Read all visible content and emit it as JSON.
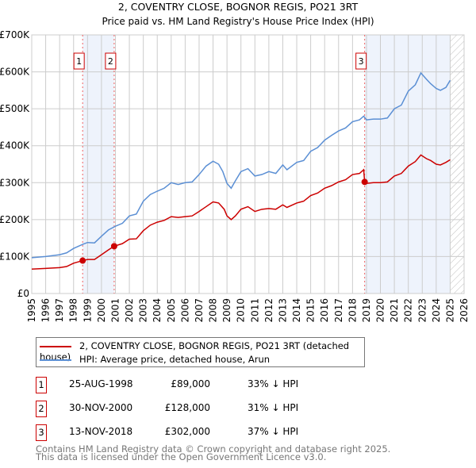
{
  "chart_data": {
    "type": "line",
    "title": "2, COVENTRY CLOSE, BOGNOR REGIS, PO21 3RT",
    "subtitle": "Price paid vs. HM Land Registry's House Price Index (HPI)",
    "xlim": [
      1995,
      2026
    ],
    "ylim": [
      0,
      700000
    ],
    "y_ticks": [
      {
        "v": 0,
        "label": "£0"
      },
      {
        "v": 100000,
        "label": "£100K"
      },
      {
        "v": 200000,
        "label": "£200K"
      },
      {
        "v": 300000,
        "label": "£300K"
      },
      {
        "v": 400000,
        "label": "£400K"
      },
      {
        "v": 500000,
        "label": "£500K"
      },
      {
        "v": 600000,
        "label": "£600K"
      },
      {
        "v": 700000,
        "label": "£700K"
      }
    ],
    "x_ticks": [
      "1995",
      "1996",
      "1997",
      "1998",
      "1999",
      "2000",
      "2001",
      "2002",
      "2003",
      "2004",
      "2005",
      "2006",
      "2007",
      "2008",
      "2009",
      "2010",
      "2011",
      "2012",
      "2013",
      "2014",
      "2015",
      "2016",
      "2017",
      "2018",
      "2019",
      "2020",
      "2021",
      "2022",
      "2023",
      "2024",
      "2025",
      "2026"
    ],
    "series": [
      {
        "name": "2, COVENTRY CLOSE, BOGNOR REGIS, PO21 3RT (detached house)",
        "color": "#cc0000",
        "x": [
          1995,
          1996,
          1997,
          1997.5,
          1998,
          1998.65,
          1999,
          1999.5,
          2000,
          2000.5,
          2000.9,
          2001.5,
          2002,
          2002.5,
          2003,
          2003.5,
          2004,
          2004.5,
          2005,
          2005.5,
          2006,
          2006.5,
          2007,
          2007.5,
          2008,
          2008.4,
          2008.8,
          2009,
          2009.3,
          2009.6,
          2010,
          2010.5,
          2011,
          2011.5,
          2012,
          2012.5,
          2013,
          2013.3,
          2014,
          2014.5,
          2015,
          2015.5,
          2016,
          2016.5,
          2017,
          2017.5,
          2018,
          2018.5,
          2018.8,
          2018.87,
          2019,
          2019.5,
          2020,
          2020.5,
          2021,
          2021.5,
          2022,
          2022.5,
          2022.9,
          2023.3,
          2023.6,
          2024,
          2024.3,
          2024.7,
          2025
        ],
        "values": [
          66,
          68,
          70,
          73,
          82,
          89,
          92,
          92,
          105,
          118,
          128,
          135,
          147,
          148,
          170,
          185,
          193,
          198,
          208,
          206,
          208,
          210,
          222,
          235,
          248,
          245,
          228,
          210,
          200,
          210,
          228,
          235,
          222,
          228,
          230,
          228,
          240,
          233,
          245,
          250,
          265,
          272,
          285,
          292,
          302,
          308,
          322,
          325,
          335,
          302,
          298,
          300,
          300,
          302,
          318,
          325,
          345,
          357,
          375,
          365,
          360,
          350,
          348,
          355,
          362
        ]
      },
      {
        "name": "HPI: Average price, detached house, Arun",
        "color": "#5b8fd4",
        "x": [
          1995,
          1996,
          1997,
          1997.5,
          1998,
          1998.65,
          1999,
          1999.5,
          2000,
          2000.5,
          2001,
          2001.5,
          2002,
          2002.5,
          2003,
          2003.5,
          2004,
          2004.5,
          2005,
          2005.5,
          2006,
          2006.5,
          2007,
          2007.5,
          2008,
          2008.4,
          2008.7,
          2009,
          2009.3,
          2009.6,
          2010,
          2010.5,
          2011,
          2011.5,
          2012,
          2012.5,
          2013,
          2013.3,
          2014,
          2014.5,
          2015,
          2015.5,
          2016,
          2016.5,
          2017,
          2017.5,
          2018,
          2018.5,
          2018.8,
          2019,
          2019.5,
          2020,
          2020.5,
          2021,
          2021.5,
          2022,
          2022.5,
          2022.9,
          2023.3,
          2023.6,
          2024,
          2024.3,
          2024.7,
          2025
        ],
        "values": [
          97,
          100,
          105,
          110,
          122,
          133,
          138,
          137,
          155,
          172,
          182,
          190,
          210,
          215,
          250,
          268,
          277,
          285,
          300,
          295,
          300,
          302,
          322,
          345,
          358,
          350,
          330,
          298,
          285,
          305,
          330,
          338,
          318,
          322,
          330,
          325,
          348,
          335,
          355,
          360,
          385,
          395,
          415,
          428,
          440,
          448,
          465,
          470,
          480,
          470,
          472,
          472,
          475,
          500,
          510,
          548,
          565,
          597,
          580,
          568,
          555,
          550,
          558,
          577
        ]
      }
    ],
    "value_unit": "thousands GBP",
    "sales": [
      {
        "n": "1",
        "x": 1998.65,
        "value": 89
      },
      {
        "n": "2",
        "x": 2000.91,
        "value": 128
      },
      {
        "n": "3",
        "x": 2018.87,
        "value": 302
      }
    ],
    "shaded_ranges": [
      [
        1998.65,
        2000.91
      ],
      [
        2018.87,
        2025.0
      ]
    ],
    "hatched_from": 2025.0,
    "grid": true,
    "legend_placement": "below"
  },
  "legend": {
    "items": [
      "2, COVENTRY CLOSE, BOGNOR REGIS, PO21 3RT (detached house)",
      "HPI: Average price, detached house, Arun"
    ]
  },
  "transactions": [
    {
      "n": "1",
      "date": "25-AUG-1998",
      "price": "£89,000",
      "hpi": "33% ↓ HPI"
    },
    {
      "n": "2",
      "date": "30-NOV-2000",
      "price": "£128,000",
      "hpi": "31% ↓ HPI"
    },
    {
      "n": "3",
      "date": "13-NOV-2018",
      "price": "£302,000",
      "hpi": "37% ↓ HPI"
    }
  ],
  "footer": [
    "Contains HM Land Registry data © Crown copyright and database right 2025.",
    "This data is licensed under the Open Government Licence v3.0."
  ]
}
